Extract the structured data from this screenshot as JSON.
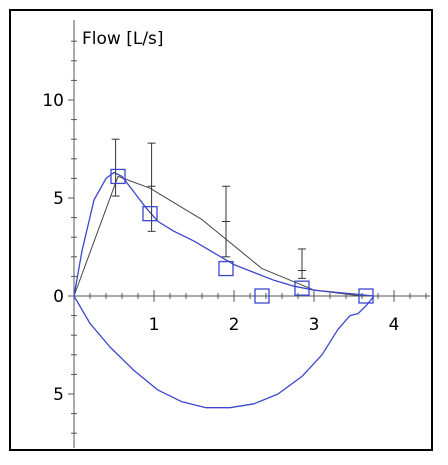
{
  "chart_data": {
    "type": "line",
    "title": "",
    "ylabel": "Flow [L/s]",
    "xlabel": "",
    "xlim": [
      0,
      4.5
    ],
    "ylim": [
      -7.8,
      14
    ],
    "x_ticks": [
      1,
      2,
      3,
      4
    ],
    "y_ticks": [
      {
        "value": 10,
        "label": "10"
      },
      {
        "value": 5,
        "label": "5"
      },
      {
        "value": 0,
        "label": "0"
      },
      {
        "value": -5,
        "label": "5"
      }
    ],
    "grid": false,
    "legend": "none",
    "colors": {
      "blue": "#3b46cc",
      "gray": "#444444",
      "frame": "#000000"
    },
    "series": [
      {
        "style": "gray-line",
        "x": [
          0,
          0.55,
          0.95,
          1.6,
          2.35,
          3.0,
          3.6
        ],
        "y": [
          0,
          6.1,
          5.5,
          3.9,
          1.4,
          0.3,
          0
        ]
      },
      {
        "style": "blue-expiration",
        "x": [
          0,
          0.1,
          0.25,
          0.4,
          0.5,
          0.6,
          0.75,
          0.9,
          1.05,
          1.25,
          1.5,
          1.75,
          2.0,
          2.25,
          2.5,
          2.75,
          3.0,
          3.25,
          3.5,
          3.75
        ],
        "y": [
          0,
          2.3,
          4.9,
          6.0,
          6.3,
          6.1,
          5.3,
          4.5,
          3.8,
          3.3,
          2.8,
          2.2,
          1.6,
          1.2,
          0.8,
          0.5,
          0.3,
          0.2,
          0.1,
          0
        ]
      },
      {
        "style": "blue-inspiration",
        "x": [
          0,
          0.2,
          0.45,
          0.75,
          1.05,
          1.35,
          1.65,
          1.95,
          2.25,
          2.55,
          2.85,
          3.1,
          3.3,
          3.45,
          3.55,
          3.65,
          3.75
        ],
        "y": [
          0,
          -1.4,
          -2.6,
          -3.8,
          -4.8,
          -5.4,
          -5.7,
          -5.7,
          -5.5,
          -5.0,
          -4.1,
          -3.0,
          -1.7,
          -1.0,
          -0.9,
          -0.5,
          0
        ]
      }
    ],
    "markers": {
      "x": [
        0.55,
        0.95,
        1.9,
        2.35,
        2.85,
        3.65
      ],
      "y": [
        6.1,
        4.2,
        1.4,
        0,
        0.4,
        0
      ]
    },
    "error_bars": [
      {
        "x": 0.52,
        "low": 5.1,
        "high": 8.0
      },
      {
        "x": 0.97,
        "low": 3.3,
        "high": 7.8
      },
      {
        "x": 1.9,
        "low": 2.0,
        "high": 5.6
      },
      {
        "x": 2.85,
        "low": 0.9,
        "high": 2.4
      }
    ],
    "mid_ticks": [
      {
        "x": 0.97,
        "y": 5.6
      },
      {
        "x": 1.9,
        "y": 3.8
      },
      {
        "x": 2.85,
        "y": 1.3
      }
    ]
  }
}
